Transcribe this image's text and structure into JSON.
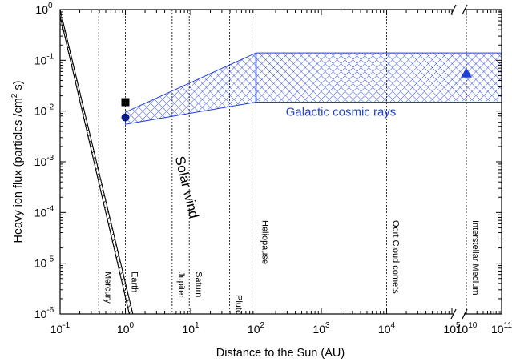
{
  "chart_data": {
    "type": "band",
    "xlabel": "Distance to the Sun (AU)",
    "ylabel_prefix": "Heavy ion flux (particles /cm",
    "ylabel_sup": "2",
    "ylabel_suffix": " s)",
    "x_scale": "log",
    "y_scale": "log",
    "x_ticks": [
      {
        "base": "10",
        "exp": "-1",
        "value": 0.1
      },
      {
        "base": "10",
        "exp": "0",
        "value": 1
      },
      {
        "base": "10",
        "exp": "1",
        "value": 10
      },
      {
        "base": "10",
        "exp": "2",
        "value": 100
      },
      {
        "base": "10",
        "exp": "3",
        "value": 1000
      },
      {
        "base": "10",
        "exp": "4",
        "value": 10000
      },
      {
        "base": "10",
        "exp": "5",
        "value": 100000
      },
      {
        "base": "10",
        "exp": "10",
        "value": 10000000000.0
      },
      {
        "base": "10",
        "exp": "11",
        "value": 100000000000.0
      }
    ],
    "y_ticks": [
      {
        "base": "10",
        "exp": "-6",
        "value": 1e-06
      },
      {
        "base": "10",
        "exp": "-5",
        "value": 1e-05
      },
      {
        "base": "10",
        "exp": "-4",
        "value": 0.0001
      },
      {
        "base": "10",
        "exp": "-3",
        "value": 0.001
      },
      {
        "base": "10",
        "exp": "-2",
        "value": 0.01
      },
      {
        "base": "10",
        "exp": "-1",
        "value": 0.1
      },
      {
        "base": "10",
        "exp": "0",
        "value": 1
      }
    ],
    "xlim": [
      0.1,
      100000000000.0
    ],
    "ylim": [
      1e-06,
      1
    ],
    "axis_break": {
      "between": [
        100000,
        10000000000.0
      ]
    },
    "reference_lines": [
      {
        "label": "Mercury",
        "x": 0.39
      },
      {
        "label": "Earth",
        "x": 1.0
      },
      {
        "label": "Jupiter",
        "x": 5.2
      },
      {
        "label": "Saturn",
        "x": 9.5
      },
      {
        "label": "Pluto",
        "x": 39.5
      },
      {
        "label": "Heliopause",
        "x": 100
      },
      {
        "label": "Oort Cloud comets",
        "x": 10000
      },
      {
        "label": "Interstellar Medium",
        "x": 10000000000.0
      }
    ],
    "series": [
      {
        "name": "Solar wind",
        "style": "black diagonal hatch band",
        "color": "#000000",
        "upper": [
          [
            0.1,
            1.0
          ],
          [
            1.3,
            1e-06
          ]
        ],
        "lower": [
          [
            0.1,
            0.75
          ],
          [
            1.15,
            1e-06
          ]
        ]
      },
      {
        "name": "Galactic cosmic rays",
        "style": "blue cross-hatch band",
        "color": "#1f3fd6",
        "upper": [
          [
            1.0,
            0.0095
          ],
          [
            100,
            0.14
          ],
          [
            100000000000.0,
            0.14
          ]
        ],
        "lower": [
          [
            1.0,
            0.0055
          ],
          [
            100,
            0.015
          ],
          [
            100000000000.0,
            0.015
          ]
        ]
      }
    ],
    "points": [
      {
        "marker": "square",
        "color": "#000000",
        "x": 1.0,
        "y": 0.015
      },
      {
        "marker": "circle",
        "color": "#0a1a8a",
        "x": 1.0,
        "y": 0.0075
      },
      {
        "marker": "triangle",
        "color": "#1f3fd6",
        "x": 10000000000.0,
        "y": 0.055
      }
    ],
    "annotations": [
      {
        "text": "Galactic cosmic rays",
        "x": 2000,
        "y": 0.01
      },
      {
        "text": "Solar wind",
        "x": 7.5,
        "y": 0.0003
      }
    ]
  }
}
